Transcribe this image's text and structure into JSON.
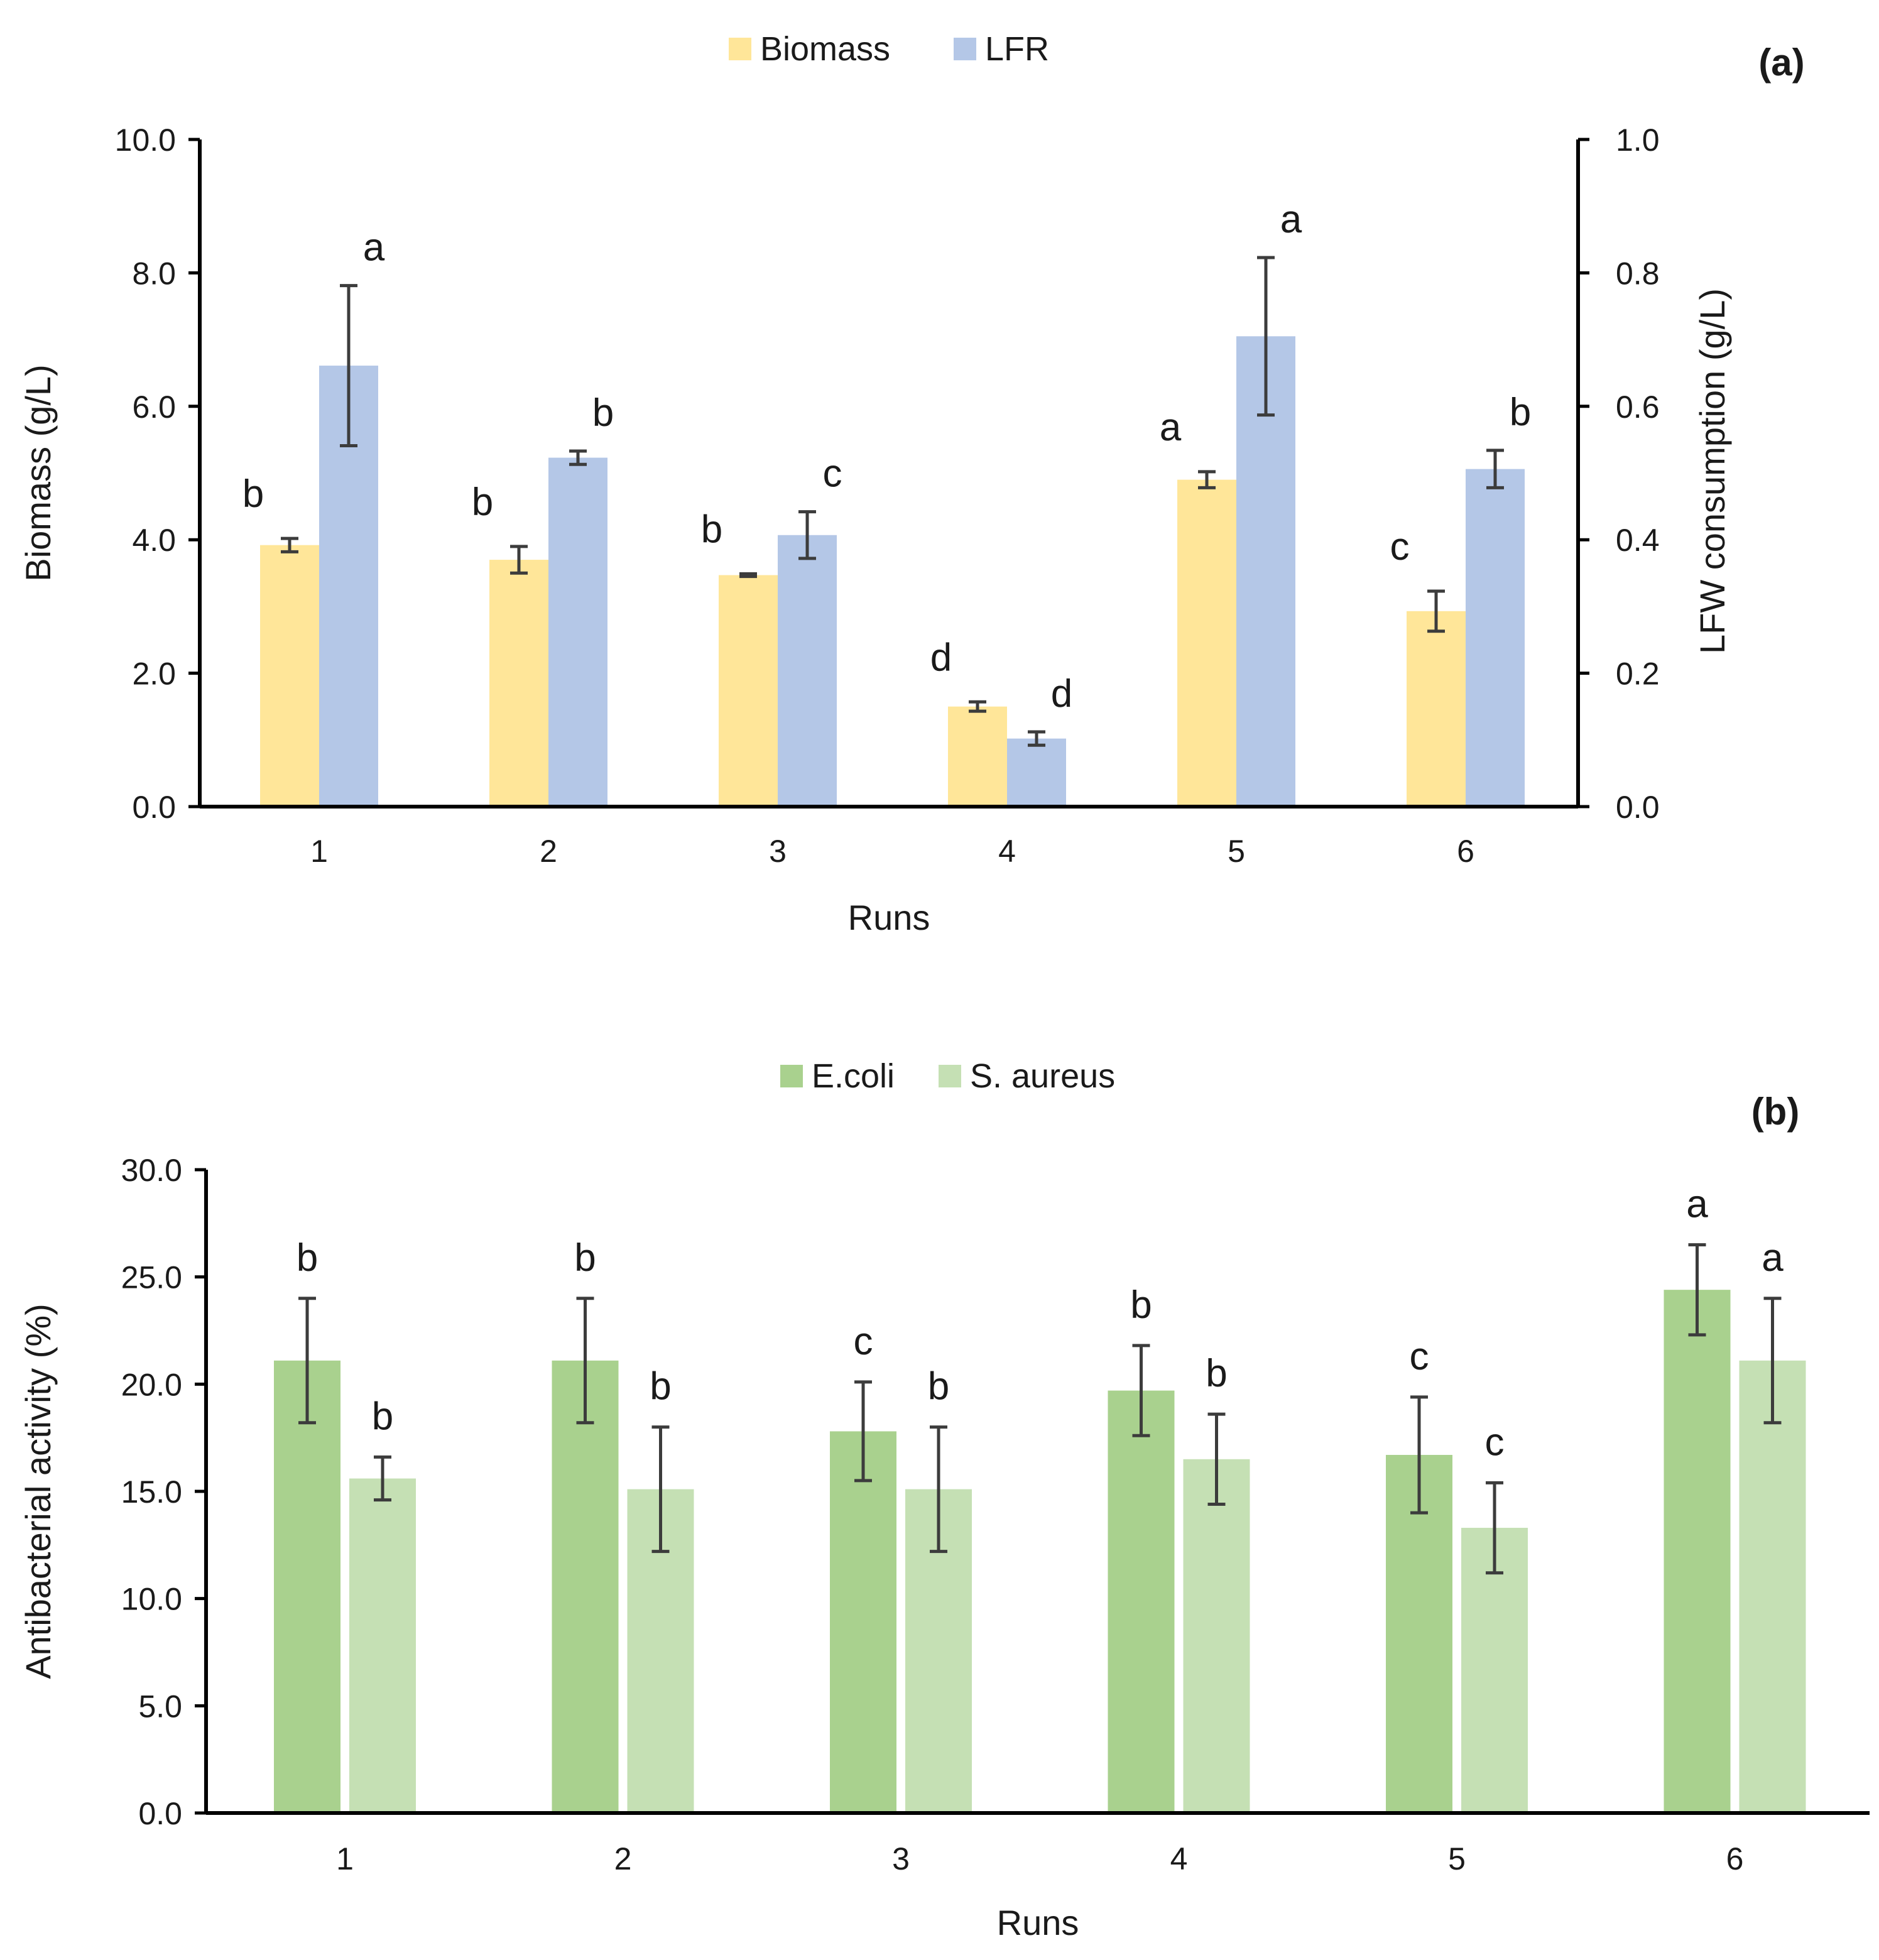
{
  "chart_data": [
    {
      "id": "a",
      "type": "bar",
      "panel_label": "(a)",
      "categories": [
        "1",
        "2",
        "3",
        "4",
        "5",
        "6"
      ],
      "xlabel": "Runs",
      "ylabel": "Biomass (g/L)",
      "y2label": "LFW consumption (g/L)",
      "ylim": [
        0,
        10
      ],
      "y2lim": [
        0,
        1
      ],
      "yticks": [
        "0.0",
        "2.0",
        "4.0",
        "6.0",
        "8.0",
        "10.0"
      ],
      "y2ticks": [
        "0.0",
        "0.2",
        "0.4",
        "0.6",
        "0.8",
        "1.0"
      ],
      "legend_position": "top-center",
      "grid": false,
      "series": [
        {
          "name": "Biomass",
          "axis": "left",
          "color": "#FFE699",
          "values": [
            3.92,
            3.7,
            3.47,
            1.5,
            4.9,
            2.93
          ],
          "errors": [
            0.1,
            0.2,
            0.02,
            0.07,
            0.12,
            0.3
          ],
          "labels": [
            "b",
            "b",
            "b",
            "d",
            "a",
            "c"
          ]
        },
        {
          "name": "LFR",
          "axis": "right",
          "color": "#B4C7E7",
          "values": [
            0.661,
            0.523,
            0.407,
            0.102,
            0.705,
            0.506
          ],
          "errors": [
            0.12,
            0.01,
            0.035,
            0.01,
            0.118,
            0.028
          ],
          "labels": [
            "a",
            "b",
            "c",
            "d",
            "a",
            "b"
          ]
        }
      ]
    },
    {
      "id": "b",
      "type": "bar",
      "panel_label": "(b)",
      "categories": [
        "1",
        "2",
        "3",
        "4",
        "5",
        "6"
      ],
      "xlabel": "Runs",
      "ylabel": "Antibacterial activity (%)",
      "ylim": [
        0,
        30
      ],
      "yticks": [
        "0.0",
        "5.0",
        "10.0",
        "15.0",
        "20.0",
        "25.0",
        "30.0"
      ],
      "legend_position": "top-center",
      "grid": false,
      "series": [
        {
          "name": "E.coli",
          "color": "#A9D18E",
          "values": [
            21.1,
            21.1,
            17.8,
            19.7,
            16.7,
            24.4
          ],
          "errors": [
            2.9,
            2.9,
            2.3,
            2.1,
            2.7,
            2.1
          ],
          "labels": [
            "b",
            "b",
            "c",
            "b",
            "c",
            "a"
          ]
        },
        {
          "name": "S. aureus",
          "color": "#C5E0B4",
          "values": [
            15.6,
            15.1,
            15.1,
            16.5,
            13.3,
            21.1
          ],
          "errors": [
            1.0,
            2.9,
            2.9,
            2.1,
            2.1,
            2.9
          ],
          "labels": [
            "b",
            "b",
            "b",
            "b",
            "c",
            "a"
          ]
        }
      ]
    }
  ]
}
